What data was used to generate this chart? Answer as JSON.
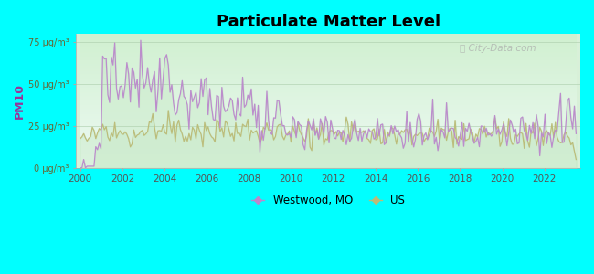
{
  "title": "Particulate Matter Level",
  "ylabel": "PM10",
  "background_color": "#00FFFF",
  "westwood_color": "#BB88CC",
  "us_color": "#BBBB77",
  "fill_color": "#CCEECC",
  "ylim": [
    0,
    80
  ],
  "yticks": [
    0,
    25,
    50,
    75
  ],
  "ytick_labels": [
    "0 μg/m³",
    "25 μg/m³",
    "50 μg/m³",
    "75 μg/m³"
  ],
  "xticks": [
    2000,
    2002,
    2004,
    2006,
    2008,
    2010,
    2012,
    2014,
    2016,
    2018,
    2020,
    2022
  ],
  "watermark": "City-Data.com",
  "seed_westwood": 777,
  "seed_us": 888
}
